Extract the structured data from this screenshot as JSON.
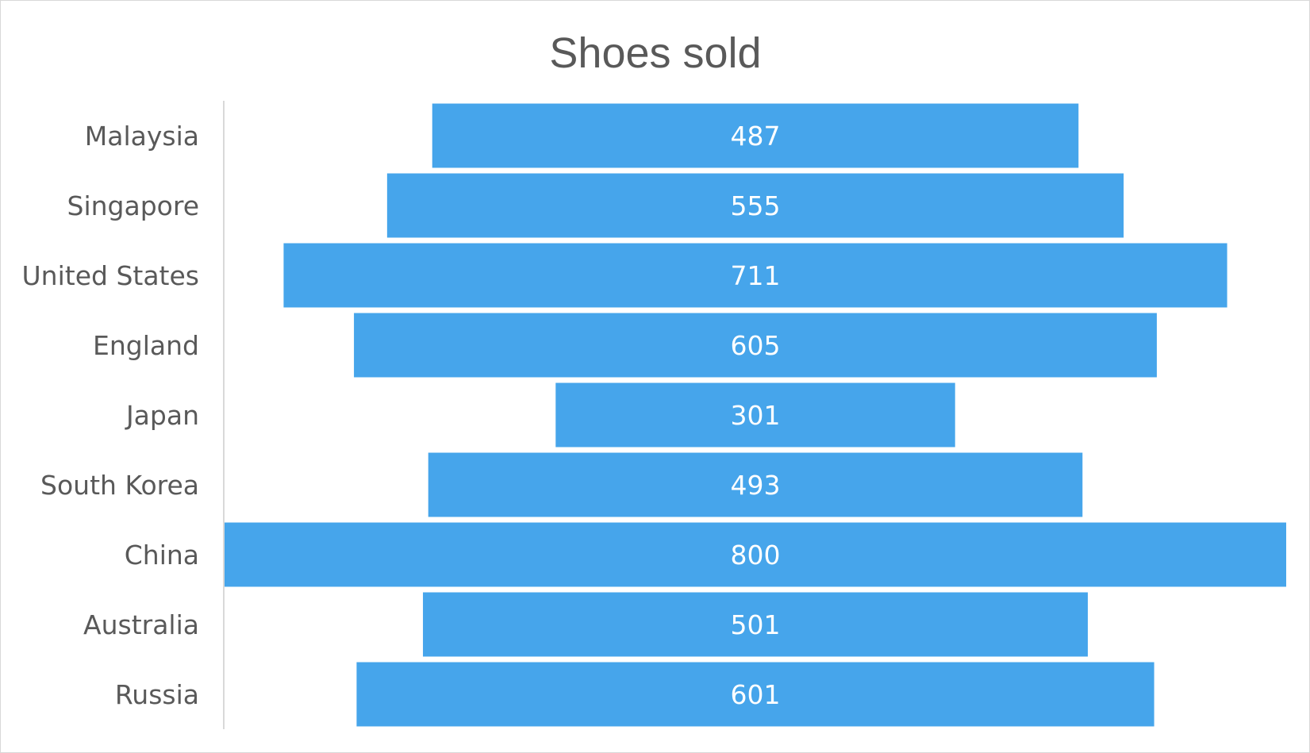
{
  "chart_data": {
    "type": "bar",
    "orientation": "horizontal-centered",
    "title": "Shoes sold",
    "xlabel": "",
    "ylabel": "",
    "categories": [
      "Malaysia",
      "Singapore",
      "United States",
      "England",
      "Japan",
      "South Korea",
      "China",
      "Australia",
      "Russia"
    ],
    "values": [
      487,
      555,
      711,
      605,
      301,
      493,
      800,
      501,
      601
    ],
    "xlim": [
      0,
      800
    ],
    "grid": false,
    "legend": "none",
    "data_labels": true
  },
  "colors": {
    "bar": "#46a5eb",
    "axis_line": "#d9d9d9",
    "title_text": "#595959",
    "category_text": "#595959",
    "data_label_text": "#ffffff"
  }
}
